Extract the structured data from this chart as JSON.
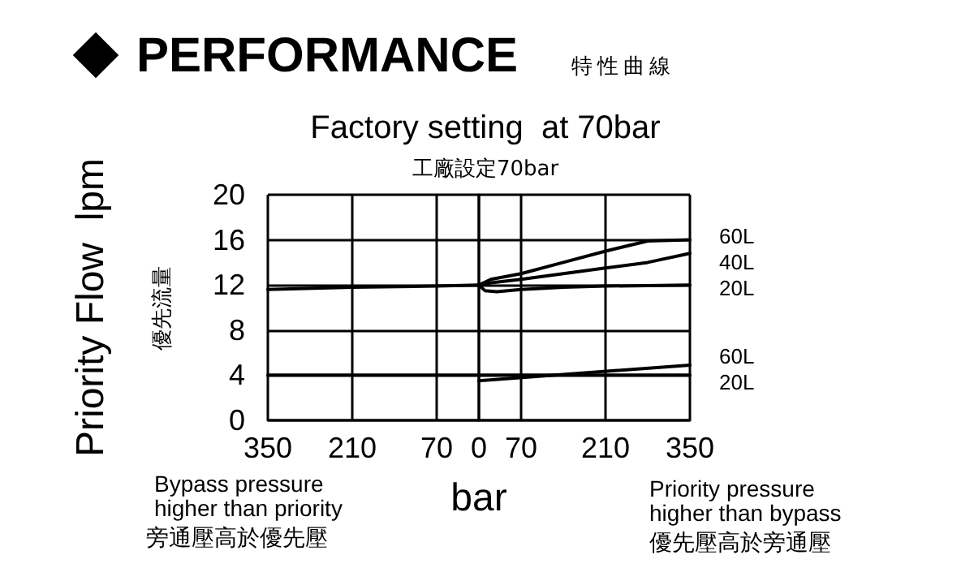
{
  "chart_data": {
    "type": "line",
    "title": "Factory setting  at 70bar",
    "subtitle": "工廠設定70bar",
    "xlabel": "bar",
    "ylabel": "Priority Flow  lpm",
    "annotations": [
      "PERFORMANCE",
      "特性曲線",
      "優先流量",
      "Bypass pressure\nhigher than priority",
      "旁通壓高於優先壓",
      "Priority pressure\nhigher than bypass",
      "優先壓高於旁通壓"
    ],
    "series": [
      {
        "name": "60L",
        "color": "#000000",
        "x": [
          0,
          20,
          70,
          140,
          210,
          280,
          350
        ],
        "values": [
          12,
          12.5,
          13,
          14,
          15,
          15.9,
          16
        ]
      },
      {
        "name": "40L",
        "color": "#000000",
        "x": [
          0,
          20,
          70,
          140,
          210,
          280,
          350
        ],
        "values": [
          12,
          12.2,
          12.5,
          13,
          13.5,
          14,
          14.8
        ]
      },
      {
        "name": "20L",
        "color": "#000000",
        "x": [
          -350,
          -210,
          -70,
          0,
          10,
          30,
          70,
          140,
          210,
          350
        ],
        "values": [
          11.6,
          11.8,
          11.9,
          12,
          11.5,
          11.4,
          11.6,
          11.8,
          11.9,
          12
        ]
      },
      {
        "name": "60L",
        "color": "#000000",
        "x": [
          0,
          350
        ],
        "values": [
          3.5,
          4.9
        ]
      },
      {
        "name": "20L",
        "color": "#000000",
        "x": [
          -350,
          0,
          350
        ],
        "values": [
          4,
          4,
          4
        ]
      }
    ],
    "xlim": [
      -350,
      350
    ],
    "xticks": [
      {
        "value": -350,
        "label": "350"
      },
      {
        "value": -210,
        "label": "210"
      },
      {
        "value": -70,
        "label": "70"
      },
      0,
      70,
      210,
      350
    ],
    "ylim": [
      0,
      20
    ],
    "yticks": [
      0,
      4,
      8,
      12,
      16,
      20
    ],
    "grid": true,
    "legend": false,
    "marker": "none",
    "line_style": "solid"
  }
}
